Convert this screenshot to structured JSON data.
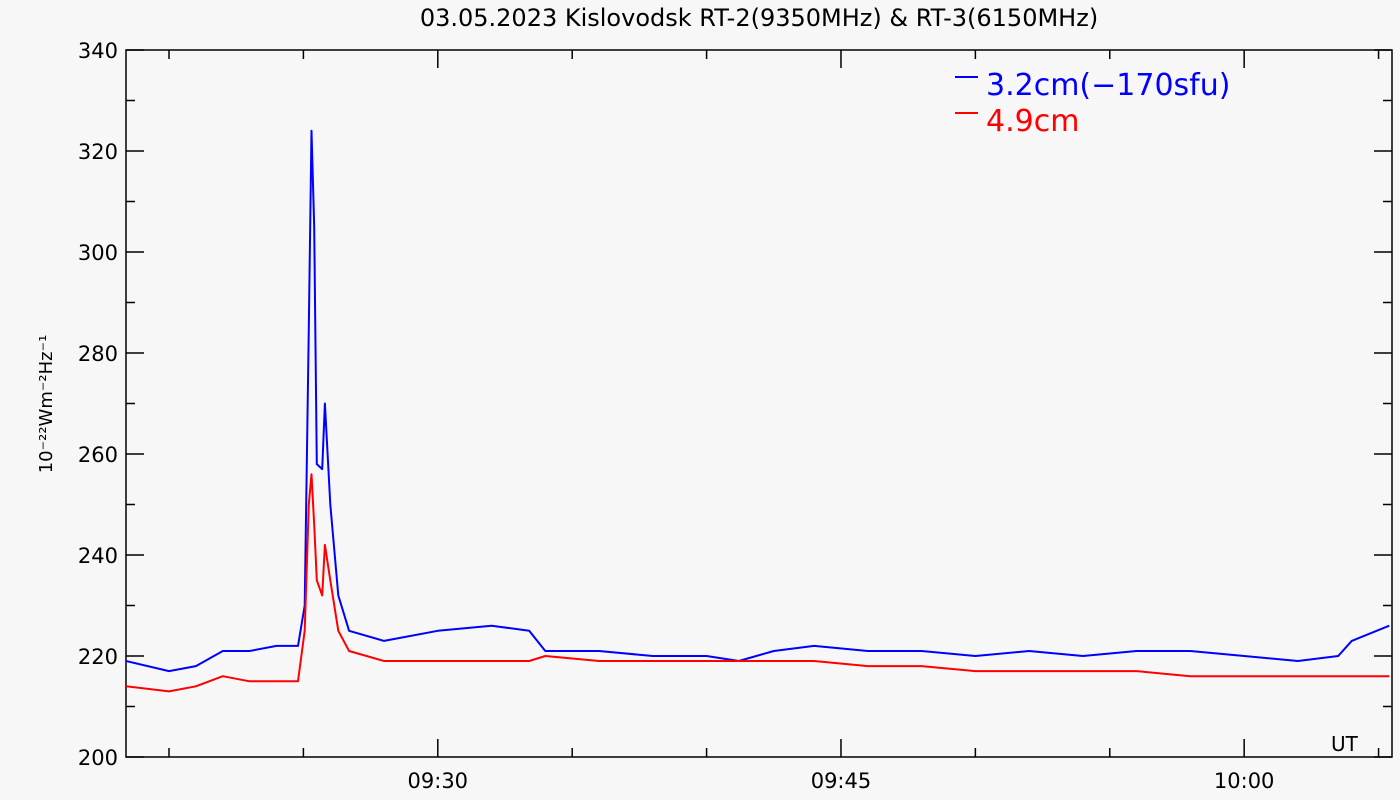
{
  "chart_data": {
    "type": "line",
    "title": "03.05.2023 Kislovodsk RT-2(9350MHz) & RT-3(6150MHz)",
    "y_label": "10⁻²²Wm⁻²Hz⁻¹",
    "x_label": "UT",
    "x": [
      18.4,
      20,
      21,
      22,
      23,
      24,
      24.8,
      25.05,
      25.2,
      25.3,
      25.4,
      25.5,
      25.7,
      25.8,
      26,
      26.3,
      26.7,
      28,
      30,
      32,
      33.4,
      34,
      36,
      38,
      40,
      41.2,
      42.5,
      44,
      46,
      48,
      50,
      52,
      54,
      56,
      58,
      60,
      62,
      63.5,
      64,
      65.4
    ],
    "series": [
      {
        "name": "3.2cm(−170sfu)",
        "color": "#0000ff",
        "values": [
          219,
          217,
          218,
          221,
          221,
          222,
          222,
          230,
          285,
          324,
          305,
          258,
          257,
          270,
          250,
          232,
          225,
          223,
          225,
          226,
          225,
          221,
          221,
          220,
          220,
          219,
          221,
          222,
          221,
          221,
          220,
          221,
          220,
          221,
          221,
          220,
          219,
          220,
          223,
          226
        ]
      },
      {
        "name": "4.9cm",
        "color": "#ff0000",
        "values": [
          214,
          213,
          214,
          216,
          215,
          215,
          215,
          225,
          250,
          256,
          246,
          235,
          232,
          242,
          235,
          225,
          221,
          219,
          219,
          219,
          219,
          220,
          219,
          219,
          219,
          219,
          219,
          219,
          218,
          218,
          217,
          217,
          217,
          217,
          216,
          216,
          216,
          216,
          216,
          216
        ]
      }
    ],
    "xlim": [
      18.4,
      65.5
    ],
    "xticks": [
      {
        "value": 30,
        "label": "09:30"
      },
      {
        "value": 45,
        "label": "09:45"
      },
      {
        "value": 60,
        "label": "10:00"
      }
    ],
    "xminorticks": [
      20,
      25,
      35,
      40,
      50,
      55,
      65
    ],
    "ylim": [
      200,
      340
    ],
    "yticks": [
      200,
      220,
      240,
      260,
      280,
      300,
      320,
      340
    ],
    "legend": "upper right"
  }
}
